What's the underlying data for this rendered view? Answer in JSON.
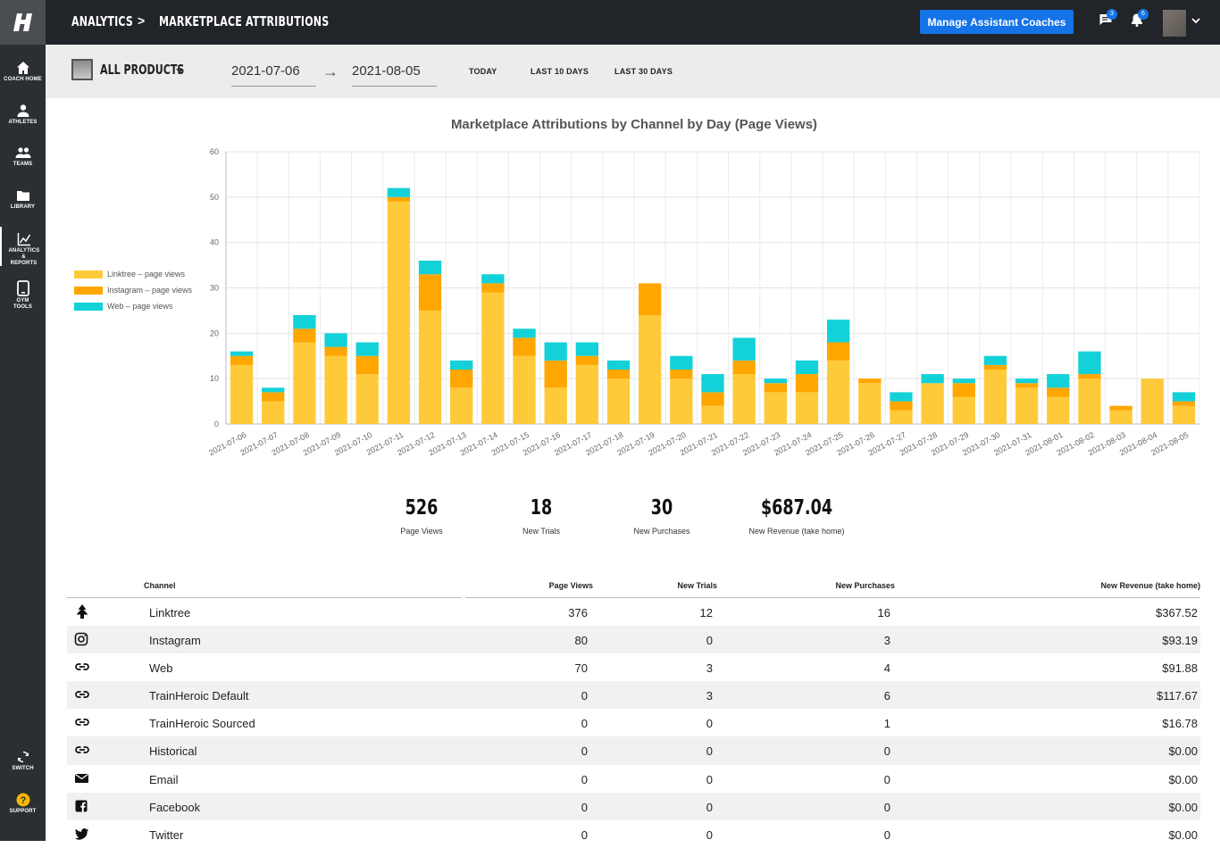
{
  "nav": {
    "items": [
      {
        "label": "Coach Home",
        "icon": "home-icon"
      },
      {
        "label": "Athletes",
        "icon": "person-icon"
      },
      {
        "label": "Teams",
        "icon": "group-icon"
      },
      {
        "label": "Library",
        "icon": "folder-icon"
      },
      {
        "label": "Analytics & Reports",
        "icon": "chart-line-icon"
      },
      {
        "label": "Gym Tools",
        "icon": "tablet-icon"
      }
    ],
    "bottom": [
      {
        "label": "Switch",
        "icon": "sync-icon"
      },
      {
        "label": "Support",
        "icon": "help-icon"
      }
    ]
  },
  "header": {
    "breadcrumb_root": "ANALYTICS",
    "breadcrumb_sep": ">",
    "breadcrumb_page": "MARKETPLACE ATTRIBUTIONS",
    "manage_button": "Manage Assistant Coaches",
    "messages_badge": "3",
    "notifications_badge": "6",
    "accent": "#1473e6"
  },
  "filters": {
    "product": "ALL PRODUCTS",
    "start_date": "2021-07-06",
    "end_date": "2021-08-05",
    "arrow": "→",
    "quick": [
      "TODAY",
      "LAST 10 DAYS",
      "LAST 30 DAYS"
    ]
  },
  "chart_data": {
    "type": "bar",
    "stacked": true,
    "title": "Marketplace Attributions by Channel by Day (Page Views)",
    "ylim": [
      0,
      60
    ],
    "yticks": [
      0,
      10,
      20,
      30,
      40,
      50,
      60
    ],
    "grid": true,
    "legend_position": "left",
    "categories": [
      "2021-07-06",
      "2021-07-07",
      "2021-07-08",
      "2021-07-09",
      "2021-07-10",
      "2021-07-11",
      "2021-07-12",
      "2021-07-13",
      "2021-07-14",
      "2021-07-15",
      "2021-07-16",
      "2021-07-17",
      "2021-07-18",
      "2021-07-19",
      "2021-07-20",
      "2021-07-21",
      "2021-07-22",
      "2021-07-23",
      "2021-07-24",
      "2021-07-25",
      "2021-07-26",
      "2021-07-27",
      "2021-07-28",
      "2021-07-29",
      "2021-07-30",
      "2021-07-31",
      "2021-08-01",
      "2021-08-02",
      "2021-08-03",
      "2021-08-04",
      "2021-08-05"
    ],
    "series": [
      {
        "name": "Linktree – page views",
        "color": "#ffca3a",
        "values": [
          13,
          5,
          18,
          15,
          11,
          49,
          25,
          8,
          29,
          15,
          8,
          13,
          10,
          24,
          10,
          4,
          11,
          7,
          7,
          14,
          9,
          3,
          9,
          6,
          12,
          8,
          6,
          10,
          3,
          10,
          4
        ]
      },
      {
        "name": "Instagram – page views",
        "color": "#ffa600",
        "values": [
          2,
          2,
          3,
          2,
          4,
          1,
          8,
          4,
          2,
          4,
          6,
          2,
          2,
          7,
          2,
          3,
          3,
          2,
          4,
          4,
          1,
          2,
          0,
          3,
          1,
          1,
          2,
          1,
          1,
          0,
          1
        ]
      },
      {
        "name": "Web – page views",
        "color": "#13d1d8",
        "values": [
          1,
          1,
          3,
          3,
          3,
          2,
          3,
          2,
          2,
          2,
          4,
          3,
          2,
          0,
          3,
          4,
          5,
          1,
          3,
          5,
          0,
          2,
          2,
          1,
          2,
          1,
          3,
          5,
          0,
          0,
          2
        ]
      }
    ]
  },
  "stats": [
    {
      "value": "526",
      "label": "Page Views"
    },
    {
      "value": "18",
      "label": "New Trials"
    },
    {
      "value": "30",
      "label": "New Purchases"
    },
    {
      "value": "$687.04",
      "label": "New Revenue (take home)"
    }
  ],
  "table": {
    "headers": [
      "Channel",
      "Page Views",
      "New Trials",
      "New Purchases",
      "New Revenue (take home)"
    ],
    "rows": [
      {
        "icon": "linktree-icon",
        "channel": "Linktree",
        "views": "376",
        "trials": "12",
        "purchases": "16",
        "revenue": "$367.52"
      },
      {
        "icon": "instagram-icon",
        "channel": "Instagram",
        "views": "80",
        "trials": "0",
        "purchases": "3",
        "revenue": "$93.19"
      },
      {
        "icon": "link-icon",
        "channel": "Web",
        "views": "70",
        "trials": "3",
        "purchases": "4",
        "revenue": "$91.88"
      },
      {
        "icon": "link-icon",
        "channel": "TrainHeroic Default",
        "views": "0",
        "trials": "3",
        "purchases": "6",
        "revenue": "$117.67"
      },
      {
        "icon": "link-icon",
        "channel": "TrainHeroic Sourced",
        "views": "0",
        "trials": "0",
        "purchases": "1",
        "revenue": "$16.78"
      },
      {
        "icon": "link-icon",
        "channel": "Historical",
        "views": "0",
        "trials": "0",
        "purchases": "0",
        "revenue": "$0.00"
      },
      {
        "icon": "email-icon",
        "channel": "Email",
        "views": "0",
        "trials": "0",
        "purchases": "0",
        "revenue": "$0.00"
      },
      {
        "icon": "facebook-icon",
        "channel": "Facebook",
        "views": "0",
        "trials": "0",
        "purchases": "0",
        "revenue": "$0.00"
      },
      {
        "icon": "twitter-icon",
        "channel": "Twitter",
        "views": "0",
        "trials": "0",
        "purchases": "0",
        "revenue": "$0.00"
      }
    ]
  }
}
